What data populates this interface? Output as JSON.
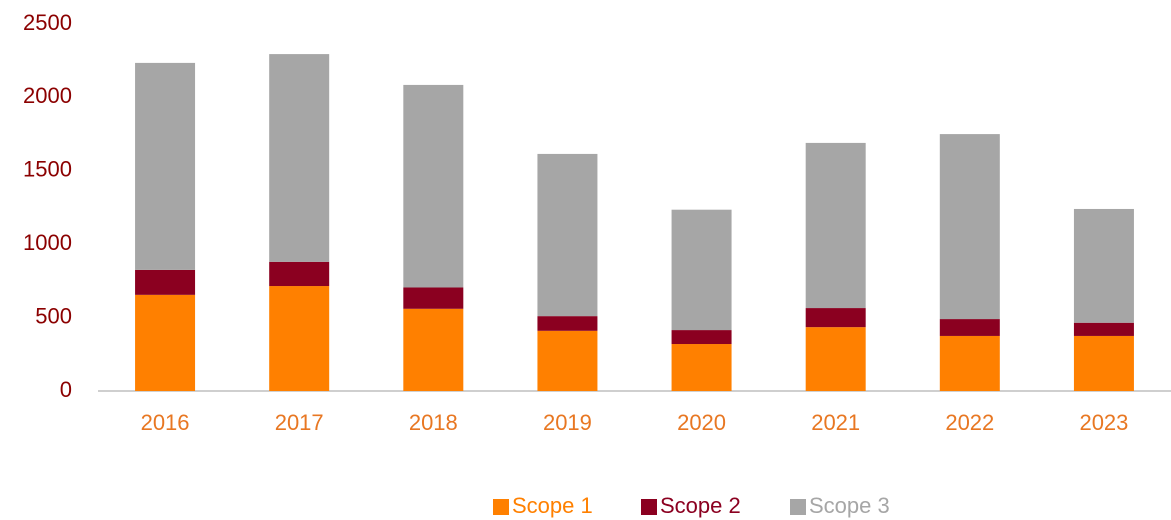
{
  "chart_data": {
    "type": "stacked_bar",
    "categories": [
      "2016",
      "2017",
      "2018",
      "2019",
      "2020",
      "2021",
      "2022",
      "2023"
    ],
    "series": [
      {
        "name": "Scope 1",
        "color": "#ff8000",
        "values": [
          655,
          715,
          560,
          410,
          320,
          435,
          375,
          375
        ]
      },
      {
        "name": "Scope 2",
        "color": "#8b0020",
        "values": [
          170,
          165,
          145,
          100,
          95,
          130,
          115,
          90
        ]
      },
      {
        "name": "Scope 3",
        "color": "#a6a6a6",
        "values": [
          1410,
          1415,
          1380,
          1105,
          820,
          1125,
          1260,
          775
        ]
      }
    ],
    "ylim": [
      0,
      2500
    ],
    "yticks": [
      0,
      500,
      1000,
      1500,
      2000,
      2500
    ],
    "grid": false,
    "legend": "bottom"
  }
}
